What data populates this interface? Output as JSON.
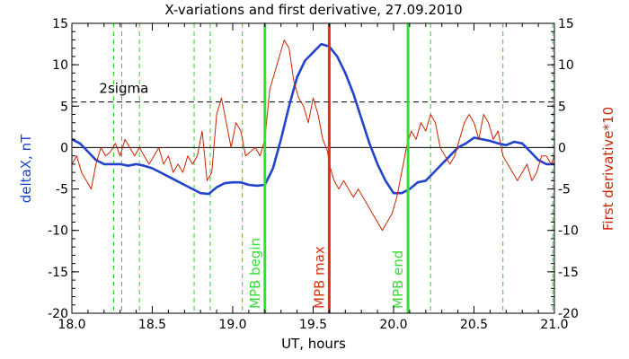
{
  "chart_data": {
    "type": "line",
    "title": "X-variations and first derivative, 27.09.2010",
    "xlabel": "UT, hours",
    "ylabel_left": "deltaX, nT",
    "ylabel_right": "First derivative*10",
    "xlim": [
      18.0,
      21.0
    ],
    "ylim": [
      -20,
      15
    ],
    "x_ticks": [
      "18.0",
      "18.5",
      "19.0",
      "19.5",
      "20.0",
      "20.5",
      "21.0"
    ],
    "y_ticks": [
      "15",
      "10",
      "5",
      "0",
      "-5",
      "-10",
      "-15",
      "-20"
    ],
    "threshold": {
      "label": "2sigma",
      "value": 5.5
    },
    "zero_line": 0,
    "vertical_markers": [
      {
        "label": "MPB begin",
        "x": 19.2,
        "color": "#33dd33"
      },
      {
        "label": "MPB max",
        "x": 19.6,
        "color": "#e03010"
      },
      {
        "label": "MPB end",
        "x": 20.09,
        "color": "#33dd33"
      }
    ],
    "dashed_verticals": [
      18.26,
      18.31,
      18.42,
      18.76,
      18.86,
      19.06,
      20.23,
      20.68,
      20.99
    ],
    "series": [
      {
        "name": "deltaX, nT",
        "axis": "left",
        "color": "#2244cc",
        "x": [
          18.0,
          18.05,
          18.1,
          18.15,
          18.2,
          18.25,
          18.3,
          18.35,
          18.4,
          18.45,
          18.5,
          18.55,
          18.6,
          18.65,
          18.7,
          18.75,
          18.8,
          18.85,
          18.9,
          18.95,
          19.0,
          19.05,
          19.1,
          19.15,
          19.2,
          19.25,
          19.3,
          19.35,
          19.4,
          19.45,
          19.5,
          19.55,
          19.6,
          19.65,
          19.7,
          19.75,
          19.8,
          19.85,
          19.9,
          19.95,
          20.0,
          20.05,
          20.1,
          20.15,
          20.2,
          20.25,
          20.3,
          20.35,
          20.4,
          20.45,
          20.5,
          20.55,
          20.6,
          20.65,
          20.7,
          20.75,
          20.8,
          20.85,
          20.9,
          20.95,
          21.0
        ],
        "y": [
          1.0,
          0.5,
          -0.5,
          -1.5,
          -2.0,
          -2.0,
          -2.0,
          -2.2,
          -2.0,
          -2.2,
          -2.5,
          -3.0,
          -3.5,
          -4.0,
          -4.5,
          -5.0,
          -5.5,
          -5.6,
          -4.8,
          -4.3,
          -4.2,
          -4.2,
          -4.5,
          -4.6,
          -4.5,
          -2.5,
          1.0,
          5.0,
          8.5,
          10.5,
          11.5,
          12.5,
          12.2,
          11.0,
          9.0,
          6.5,
          3.5,
          0.5,
          -2.0,
          -4.0,
          -5.5,
          -5.5,
          -5.0,
          -4.2,
          -4.0,
          -3.0,
          -2.0,
          -1.0,
          0.0,
          0.5,
          1.2,
          1.0,
          0.8,
          0.5,
          0.3,
          0.7,
          0.5,
          -0.5,
          -1.5,
          -2.0,
          -2.0
        ]
      },
      {
        "name": "First derivative*10",
        "axis": "right",
        "color": "#cc2200",
        "x": [
          18.0,
          18.03,
          18.06,
          18.09,
          18.12,
          18.15,
          18.18,
          18.21,
          18.24,
          18.27,
          18.3,
          18.33,
          18.36,
          18.39,
          18.42,
          18.45,
          18.48,
          18.51,
          18.54,
          18.57,
          18.6,
          18.63,
          18.66,
          18.69,
          18.72,
          18.75,
          18.78,
          18.81,
          18.84,
          18.87,
          18.9,
          18.93,
          18.96,
          18.99,
          19.02,
          19.05,
          19.08,
          19.11,
          19.14,
          19.17,
          19.2,
          19.23,
          19.26,
          19.29,
          19.32,
          19.35,
          19.38,
          19.41,
          19.44,
          19.47,
          19.5,
          19.53,
          19.56,
          19.59,
          19.6,
          19.63,
          19.66,
          19.69,
          19.72,
          19.75,
          19.78,
          19.81,
          19.84,
          19.87,
          19.9,
          19.93,
          19.96,
          19.99,
          20.02,
          20.05,
          20.08,
          20.11,
          20.14,
          20.17,
          20.2,
          20.23,
          20.26,
          20.29,
          20.32,
          20.35,
          20.38,
          20.41,
          20.44,
          20.47,
          20.5,
          20.53,
          20.56,
          20.59,
          20.62,
          20.65,
          20.68,
          20.71,
          20.74,
          20.77,
          20.8,
          20.83,
          20.86,
          20.89,
          20.92,
          20.95,
          20.98,
          21.0
        ],
        "y": [
          -2,
          -1,
          -3,
          -4,
          -5,
          -2,
          0,
          -1,
          -0.5,
          0.5,
          -1,
          1,
          0,
          -1,
          0,
          -1,
          -2,
          -1,
          0,
          -2,
          -1,
          -3,
          -2,
          -3,
          -1,
          -2,
          -1,
          2,
          -4,
          -3,
          4,
          6,
          3,
          0,
          3,
          2,
          -1,
          -0.5,
          0,
          -1,
          1,
          7,
          9,
          11,
          13,
          12,
          8,
          6,
          5,
          3,
          6,
          4,
          1,
          -0.5,
          -2,
          -4,
          -5,
          -4,
          -5,
          -6,
          -5,
          -6,
          -7,
          -8,
          -9,
          -10,
          -9,
          -8,
          -6,
          -3,
          0,
          2,
          1,
          3,
          2,
          4,
          3,
          0,
          -1,
          -2,
          -1,
          1,
          3,
          4,
          3,
          1,
          4,
          3,
          1,
          2,
          -1,
          -2,
          -3,
          -4,
          -3,
          -2,
          -4,
          -3,
          -1,
          -1,
          -2,
          -1
        ]
      }
    ]
  }
}
